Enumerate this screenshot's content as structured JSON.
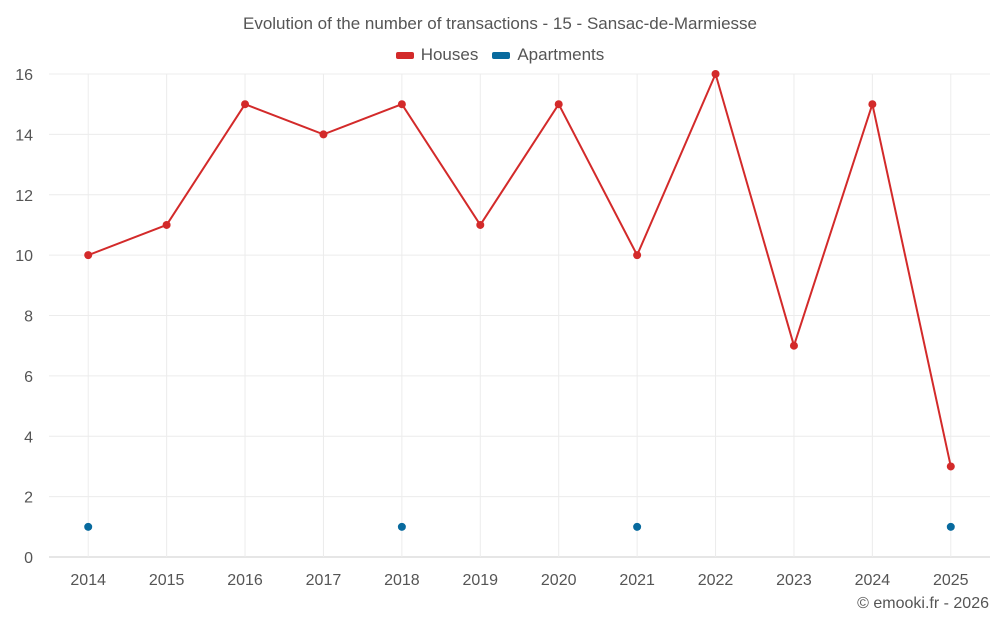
{
  "chart_data": {
    "type": "line",
    "title": "Evolution of the number of transactions - 15 - Sansac-de-Marmiesse",
    "categories": [
      "2014",
      "2015",
      "2016",
      "2017",
      "2018",
      "2019",
      "2020",
      "2021",
      "2022",
      "2023",
      "2024",
      "2025"
    ],
    "yticks": [
      0,
      2,
      4,
      6,
      8,
      10,
      12,
      14,
      16
    ],
    "ylim": [
      0,
      16
    ],
    "xlabel": "",
    "ylabel": "",
    "grid": true,
    "legend_position": "top-center",
    "series": [
      {
        "name": "Houses",
        "color": "#d32a2a",
        "line": true,
        "values": [
          10,
          11,
          15,
          14,
          15,
          11,
          15,
          10,
          16,
          7,
          15,
          3
        ]
      },
      {
        "name": "Apartments",
        "color": "#086a9e",
        "line": false,
        "values": [
          1,
          null,
          null,
          null,
          1,
          null,
          null,
          1,
          null,
          null,
          null,
          1
        ]
      }
    ]
  },
  "credit": "© emooki.fr - 2026"
}
